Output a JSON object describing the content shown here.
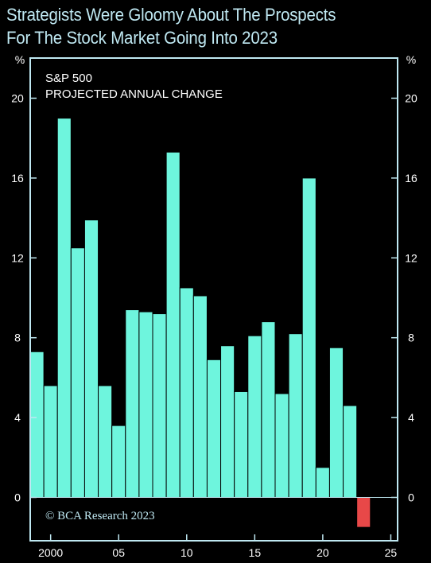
{
  "title_lines": [
    "Strategists Were Gloomy About The Prospects",
    "For The Stock Market Going Into 2023"
  ],
  "colors": {
    "background": "#000000",
    "frame": "#bfe8f2",
    "bar_positive": "#6ef5dd",
    "bar_negative": "#e84848",
    "text": "#ffffff",
    "bar_separator": "#000000"
  },
  "chart_data": {
    "type": "bar",
    "inner_label_lines": [
      "S&P 500",
      "PROJECTED ANNUAL CHANGE"
    ],
    "unit_label_left": "%",
    "unit_label_right": "%",
    "x": [
      1999,
      2000,
      2001,
      2002,
      2003,
      2004,
      2005,
      2006,
      2007,
      2008,
      2009,
      2010,
      2011,
      2012,
      2013,
      2014,
      2015,
      2016,
      2017,
      2018,
      2019,
      2020,
      2021,
      2022,
      2023
    ],
    "values": [
      7.3,
      5.6,
      19.0,
      12.5,
      13.9,
      5.6,
      3.6,
      9.4,
      9.3,
      9.2,
      17.3,
      10.5,
      10.1,
      6.9,
      7.6,
      5.3,
      8.1,
      8.8,
      5.2,
      8.2,
      16.0,
      1.5,
      7.5,
      4.6,
      -1.5
    ],
    "ylim": [
      -2,
      22
    ],
    "y_ticks": [
      0,
      4,
      8,
      12,
      16,
      20
    ],
    "y_tick_labels": [
      "0",
      "4",
      "8",
      "12",
      "16",
      "20"
    ],
    "xlim": [
      1998.5,
      2025.5
    ],
    "x_ticks": [
      2000,
      2005,
      2010,
      2015,
      2020,
      2025
    ],
    "x_tick_labels": [
      "2000",
      "05",
      "10",
      "15",
      "20",
      "25"
    ],
    "copyright": "© BCA Research 2023",
    "grid": false
  }
}
